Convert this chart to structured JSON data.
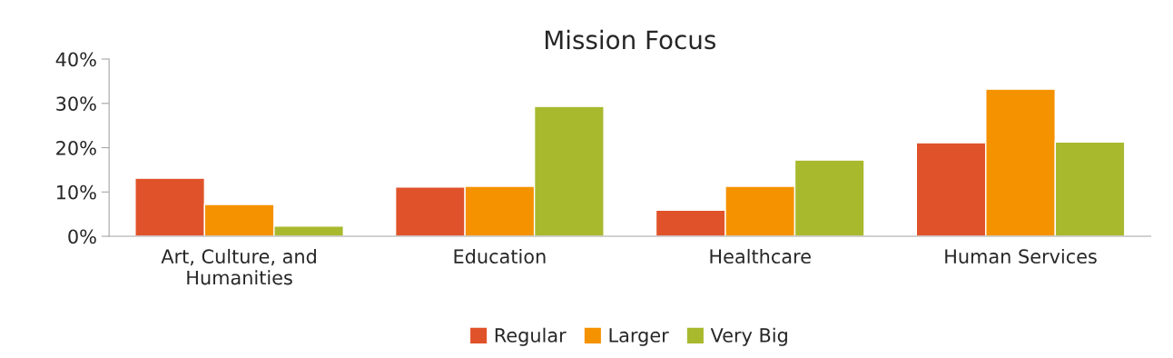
{
  "chart_data": {
    "type": "bar",
    "title": "Mission Focus",
    "categories": [
      "Art, Culture, and\nHumanities",
      "Education",
      "Healthcare",
      "Human Services"
    ],
    "series": [
      {
        "name": "Regular",
        "color": "#e0532a",
        "values": [
          13.1,
          11.1,
          5.9,
          21.1
        ]
      },
      {
        "name": "Larger",
        "color": "#f59200",
        "values": [
          7.2,
          11.3,
          11.3,
          33.2
        ]
      },
      {
        "name": "Very Big",
        "color": "#a8b92e",
        "values": [
          2.3,
          29.3,
          17.2,
          21.3
        ]
      }
    ],
    "ylim": [
      0,
      40
    ],
    "yticks": [
      {
        "value": 0,
        "label": "0%"
      },
      {
        "value": 10,
        "label": "10%"
      },
      {
        "value": 20,
        "label": "20%"
      },
      {
        "value": 30,
        "label": "30%"
      },
      {
        "value": 40,
        "label": "40%"
      }
    ],
    "grid": false,
    "legend": "bottom"
  }
}
